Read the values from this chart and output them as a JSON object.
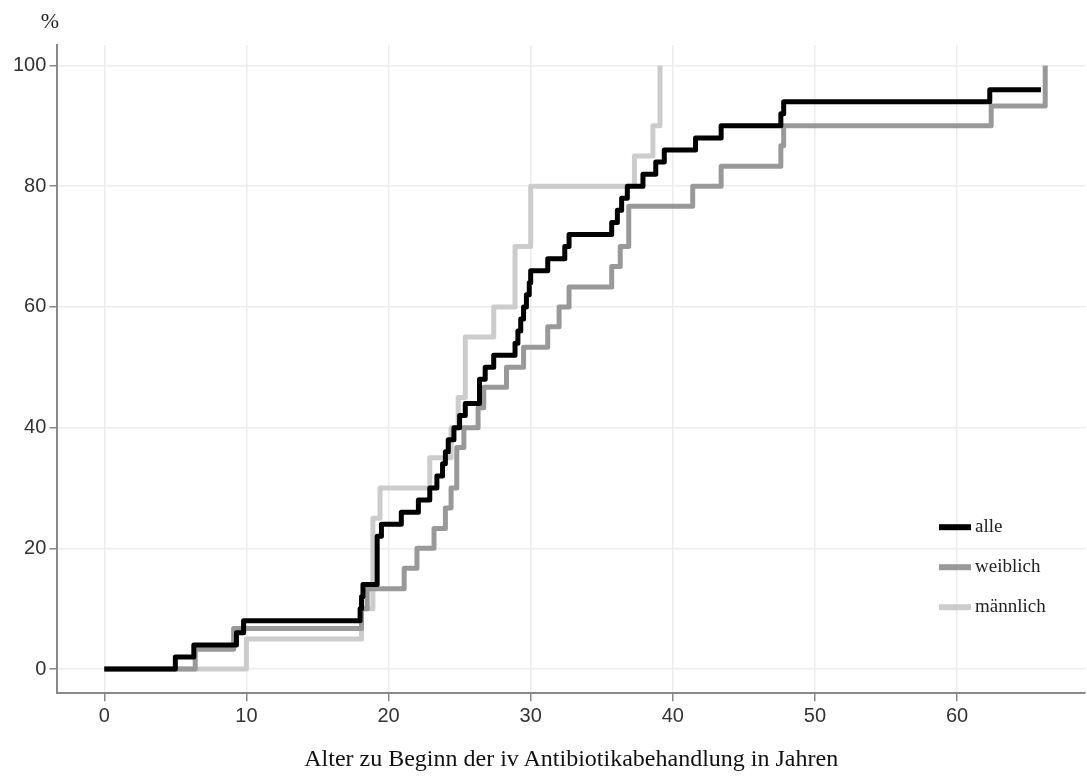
{
  "chart_data": {
    "type": "step",
    "xlabel": "Alter zu Beginn der iv Antibiotikabehandlung in Jahren",
    "ylabel": "%",
    "series": [
      {
        "name": "alle",
        "color": "#000000",
        "x": [
          0,
          5.0,
          6.3,
          9.3,
          9.8,
          18.0,
          18.1,
          18.2,
          19.2,
          19.5,
          20.9,
          22.1,
          22.9,
          23.4,
          23.8,
          24.0,
          24.2,
          24.6,
          25.0,
          25.4,
          26.4,
          26.8,
          27.4,
          28.9,
          29.1,
          29.3,
          29.5,
          29.7,
          29.9,
          30.0,
          31.2,
          32.4,
          32.7,
          35.7,
          36.1,
          36.4,
          36.8,
          37.9,
          38.8,
          39.4,
          41.6,
          43.4,
          47.6,
          47.8,
          62.3,
          65.9
        ],
        "values": [
          0,
          2,
          4,
          6,
          8,
          10,
          12,
          14,
          22,
          24,
          26,
          28,
          30,
          32,
          34,
          36,
          38,
          40,
          42,
          44,
          48,
          50,
          52,
          54,
          56,
          58,
          60,
          62,
          64,
          66,
          68,
          70,
          72,
          74,
          76,
          78,
          80,
          82,
          84,
          86,
          88,
          90,
          92,
          94,
          96,
          96
        ]
      },
      {
        "name": "weiblich",
        "color": "#999999",
        "x": [
          0,
          6.4,
          9.1,
          18.1,
          18.5,
          21.1,
          22.0,
          23.2,
          24.0,
          24.4,
          24.8,
          25.3,
          26.3,
          26.7,
          28.3,
          29.5,
          31.2,
          32.0,
          32.7,
          35.7,
          36.3,
          36.9,
          41.4,
          43.4,
          47.6,
          47.8,
          62.4,
          66.2,
          66.2
        ],
        "values": [
          0,
          3.3,
          6.7,
          10,
          13.3,
          16.7,
          20,
          23.3,
          26.7,
          30,
          36.7,
          40,
          43.3,
          46.7,
          50,
          53.3,
          56.7,
          60,
          63.3,
          66.7,
          70,
          76.7,
          80,
          83.3,
          86.7,
          90,
          93.3,
          93.3,
          100
        ]
      },
      {
        "name": "männlich",
        "color": "#cccccc",
        "x": [
          0,
          10.0,
          18.1,
          18.9,
          19.4,
          22.9,
          24.4,
          24.9,
          25.4,
          27.4,
          28.9,
          30.0,
          37.3,
          38.6,
          39.1
        ],
        "values": [
          0,
          5,
          10,
          25,
          30,
          35,
          40,
          45,
          55,
          60,
          70,
          80,
          85,
          90,
          100
        ]
      }
    ],
    "xlim": [
      -3.3,
      69
    ],
    "xticks": [
      0,
      10,
      20,
      30,
      40,
      50,
      60
    ],
    "ylim": [
      -4,
      103.4
    ],
    "yticks": [
      0,
      20,
      40,
      60,
      80,
      100
    ],
    "grid": true,
    "legend": "bottom right",
    "line_style": "solid",
    "marker": "none"
  }
}
